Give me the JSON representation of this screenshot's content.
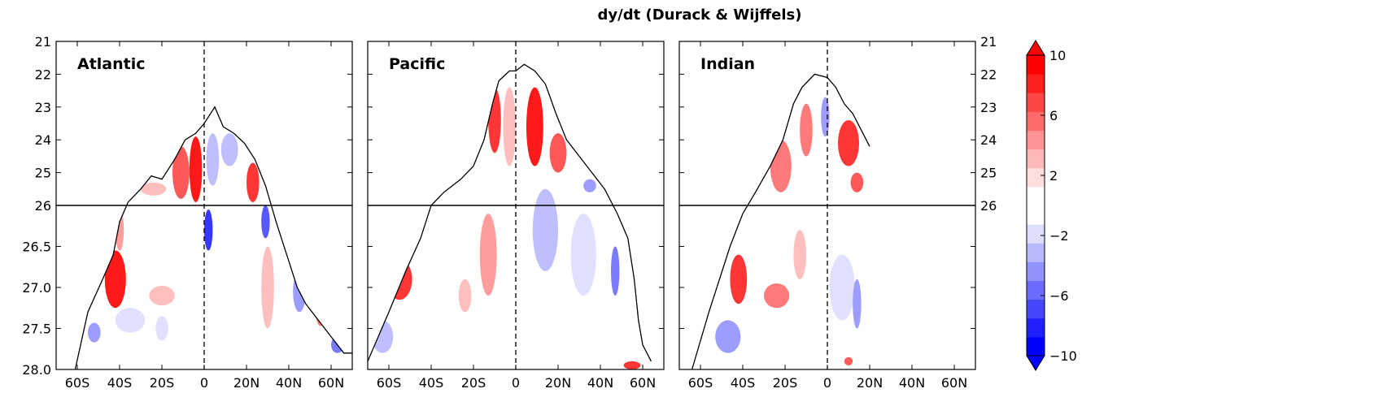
{
  "chart_data": {
    "type": "heatmap",
    "title": "dy/dt (Durack & Wijffels)",
    "x_ticks": [
      "60S",
      "40S",
      "20S",
      "0",
      "20N",
      "40N",
      "60N"
    ],
    "x_tick_values": [
      -60,
      -40,
      -20,
      0,
      20,
      40,
      60
    ],
    "xlim": [
      -70,
      70
    ],
    "y_ticks_upper": [
      "21",
      "22",
      "23",
      "24",
      "25",
      "26"
    ],
    "y_ticks_upper_values": [
      21,
      22,
      23,
      24,
      25,
      26
    ],
    "y_ticks_lower": [
      "26.5",
      "27.0",
      "27.5",
      "28.0"
    ],
    "y_ticks_lower_values": [
      26.5,
      27.0,
      27.5,
      28.0
    ],
    "ylim": [
      21,
      28
    ],
    "y_split": 26,
    "y_axis_inverted": true,
    "colorbar": {
      "ticks": [
        "10",
        "6",
        "2",
        "−2",
        "−6",
        "−10"
      ],
      "tick_values": [
        10,
        6,
        2,
        -2,
        -6,
        -10
      ],
      "range": [
        -10,
        10
      ],
      "levels": 10,
      "extend": "both",
      "colors": [
        "#0000ff",
        "#2020ff",
        "#4646ff",
        "#6b6bff",
        "#9292ff",
        "#b8b8ff",
        "#dedeff",
        "#ffffff",
        "#ffffff",
        "#ffdede",
        "#ffb8b8",
        "#ff9292",
        "#ff6b6b",
        "#ff4646",
        "#ff2020",
        "#ff0000"
      ]
    },
    "panels": [
      {
        "name": "Atlantic",
        "outcrop": [
          [
            -61,
            28.0
          ],
          [
            -55,
            27.3
          ],
          [
            -48,
            26.9
          ],
          [
            -43,
            26.6
          ],
          [
            -40,
            26.2
          ],
          [
            -36,
            25.9
          ],
          [
            -30,
            25.5
          ],
          [
            -25,
            25.1
          ],
          [
            -20,
            25.2
          ],
          [
            -14,
            24.6
          ],
          [
            -9,
            24.0
          ],
          [
            -4,
            23.8
          ],
          [
            0,
            23.5
          ],
          [
            5,
            23.0
          ],
          [
            9,
            23.6
          ],
          [
            14,
            23.8
          ],
          [
            19,
            24.1
          ],
          [
            24,
            24.6
          ],
          [
            29,
            25.4
          ],
          [
            34,
            26.2
          ],
          [
            39,
            26.6
          ],
          [
            44,
            27.0
          ],
          [
            48,
            27.2
          ],
          [
            54,
            27.4
          ],
          [
            60,
            27.6
          ],
          [
            66,
            27.8
          ],
          [
            70,
            27.8
          ]
        ],
        "patches": [
          {
            "x": -42,
            "y": 26.9,
            "rx": 5,
            "ry": 0.35,
            "v": 9
          },
          {
            "x": -40,
            "y": 26.3,
            "rx": 2,
            "ry": 0.25,
            "v": 4
          },
          {
            "x": -35,
            "y": 27.4,
            "rx": 7,
            "ry": 0.15,
            "v": -2
          },
          {
            "x": -52,
            "y": 27.55,
            "rx": 3,
            "ry": 0.12,
            "v": -5
          },
          {
            "x": -20,
            "y": 27.5,
            "rx": 3,
            "ry": 0.15,
            "v": -2
          },
          {
            "x": -24,
            "y": 25.5,
            "rx": 6,
            "ry": 0.2,
            "v": 3
          },
          {
            "x": -11,
            "y": 25.0,
            "rx": 4,
            "ry": 0.8,
            "v": 7
          },
          {
            "x": -4,
            "y": 24.9,
            "rx": 3,
            "ry": 1.0,
            "v": 10
          },
          {
            "x": 4,
            "y": 24.6,
            "rx": 3,
            "ry": 0.8,
            "v": -3
          },
          {
            "x": 12,
            "y": 24.3,
            "rx": 4,
            "ry": 0.5,
            "v": -3
          },
          {
            "x": 23,
            "y": 25.3,
            "rx": 3,
            "ry": 0.6,
            "v": 8
          },
          {
            "x": 29,
            "y": 26.2,
            "rx": 2,
            "ry": 0.2,
            "v": -7
          },
          {
            "x": 2,
            "y": 26.3,
            "rx": 2,
            "ry": 0.25,
            "v": -8
          },
          {
            "x": -20,
            "y": 27.1,
            "rx": 6,
            "ry": 0.12,
            "v": 3
          },
          {
            "x": 30,
            "y": 27.0,
            "rx": 3,
            "ry": 0.5,
            "v": 3
          },
          {
            "x": 45,
            "y": 27.05,
            "rx": 3,
            "ry": 0.25,
            "v": -4
          },
          {
            "x": 55,
            "y": 27.35,
            "rx": 2,
            "ry": 0.12,
            "v": 6
          },
          {
            "x": 63,
            "y": 27.7,
            "rx": 3,
            "ry": 0.1,
            "v": -6
          }
        ]
      },
      {
        "name": "Pacific",
        "outcrop": [
          [
            -70,
            27.9
          ],
          [
            -60,
            27.3
          ],
          [
            -52,
            26.8
          ],
          [
            -45,
            26.4
          ],
          [
            -40,
            26.0
          ],
          [
            -34,
            25.6
          ],
          [
            -26,
            25.2
          ],
          [
            -20,
            24.8
          ],
          [
            -15,
            24.0
          ],
          [
            -11,
            22.9
          ],
          [
            -8,
            22.2
          ],
          [
            -3,
            21.9
          ],
          [
            0,
            21.9
          ],
          [
            4,
            21.7
          ],
          [
            9,
            21.9
          ],
          [
            14,
            22.3
          ],
          [
            19,
            23.2
          ],
          [
            24,
            24.0
          ],
          [
            30,
            24.5
          ],
          [
            36,
            25.0
          ],
          [
            42,
            25.5
          ],
          [
            48,
            26.1
          ],
          [
            53,
            26.4
          ],
          [
            56,
            26.9
          ],
          [
            58,
            27.4
          ],
          [
            60,
            27.7
          ],
          [
            64,
            27.9
          ]
        ],
        "patches": [
          {
            "x": -55,
            "y": 26.9,
            "rx": 6,
            "ry": 0.25,
            "v": 8
          },
          {
            "x": -63,
            "y": 27.6,
            "rx": 5,
            "ry": 0.2,
            "v": -3
          },
          {
            "x": -24,
            "y": 27.1,
            "rx": 3,
            "ry": 0.2,
            "v": 3
          },
          {
            "x": -13,
            "y": 26.6,
            "rx": 4,
            "ry": 0.5,
            "v": 4
          },
          {
            "x": -10,
            "y": 23.4,
            "rx": 3,
            "ry": 1.0,
            "v": 8
          },
          {
            "x": -3,
            "y": 23.6,
            "rx": 3,
            "ry": 1.2,
            "v": 3
          },
          {
            "x": 9,
            "y": 23.6,
            "rx": 4,
            "ry": 1.2,
            "v": 9
          },
          {
            "x": 20,
            "y": 24.4,
            "rx": 4,
            "ry": 0.6,
            "v": 7
          },
          {
            "x": 14,
            "y": 26.3,
            "rx": 6,
            "ry": 0.5,
            "v": -3
          },
          {
            "x": 32,
            "y": 26.6,
            "rx": 6,
            "ry": 0.5,
            "v": -2
          },
          {
            "x": 47,
            "y": 26.8,
            "rx": 2,
            "ry": 0.3,
            "v": -6
          },
          {
            "x": 35,
            "y": 25.4,
            "rx": 3,
            "ry": 0.2,
            "v": -5
          },
          {
            "x": 55,
            "y": 27.95,
            "rx": 4,
            "ry": 0.05,
            "v": 8
          }
        ]
      },
      {
        "name": "Indian",
        "outcrop": [
          [
            -64,
            28.0
          ],
          [
            -56,
            27.3
          ],
          [
            -51,
            26.9
          ],
          [
            -46,
            26.5
          ],
          [
            -40,
            26.1
          ],
          [
            -34,
            25.6
          ],
          [
            -27,
            24.8
          ],
          [
            -21,
            24.0
          ],
          [
            -16,
            22.9
          ],
          [
            -12,
            22.4
          ],
          [
            -6,
            22.0
          ],
          [
            0,
            22.1
          ],
          [
            4,
            22.4
          ],
          [
            8,
            22.9
          ],
          [
            12,
            23.2
          ],
          [
            16,
            23.7
          ],
          [
            20,
            24.2
          ]
        ],
        "patches": [
          {
            "x": -42,
            "y": 26.9,
            "rx": 4,
            "ry": 0.3,
            "v": 8
          },
          {
            "x": -47,
            "y": 27.6,
            "rx": 6,
            "ry": 0.2,
            "v": -5
          },
          {
            "x": -24,
            "y": 27.1,
            "rx": 6,
            "ry": 0.15,
            "v": 5
          },
          {
            "x": -13,
            "y": 26.6,
            "rx": 3,
            "ry": 0.3,
            "v": 3
          },
          {
            "x": -22,
            "y": 24.8,
            "rx": 5,
            "ry": 0.8,
            "v": 6
          },
          {
            "x": -10,
            "y": 23.7,
            "rx": 3,
            "ry": 0.8,
            "v": 5
          },
          {
            "x": -1,
            "y": 23.3,
            "rx": 2,
            "ry": 0.6,
            "v": -4
          },
          {
            "x": 10,
            "y": 24.1,
            "rx": 5,
            "ry": 0.7,
            "v": 8
          },
          {
            "x": 14,
            "y": 25.3,
            "rx": 3,
            "ry": 0.3,
            "v": 7
          },
          {
            "x": 7,
            "y": 27.0,
            "rx": 6,
            "ry": 0.4,
            "v": -2
          },
          {
            "x": 14,
            "y": 27.2,
            "rx": 2,
            "ry": 0.3,
            "v": -5
          },
          {
            "x": 10,
            "y": 27.9,
            "rx": 2,
            "ry": 0.05,
            "v": 7
          }
        ]
      }
    ]
  }
}
